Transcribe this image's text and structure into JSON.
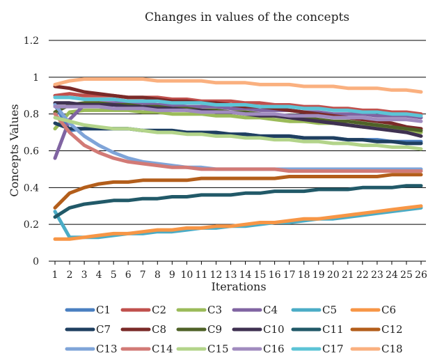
{
  "chart_data": {
    "type": "line",
    "title": "Changes in values of the concepts",
    "xlabel": "Iterations",
    "ylabel": "Concepts Values",
    "ylim": [
      0,
      1.2
    ],
    "yticks": [
      "0",
      "0.2",
      "0.4",
      "0.6",
      "0.8",
      "1",
      "1.2"
    ],
    "x": [
      1,
      2,
      3,
      4,
      5,
      6,
      7,
      8,
      9,
      10,
      11,
      12,
      13,
      14,
      15,
      16,
      17,
      18,
      19,
      20,
      21,
      22,
      23,
      24,
      25,
      26
    ],
    "grid": "horizontal",
    "legend_position": "bottom",
    "series": [
      {
        "name": "C1",
        "color": "#4a7fc1",
        "values": [
          0.85,
          0.71,
          0.72,
          0.72,
          0.72,
          0.72,
          0.71,
          0.71,
          0.71,
          0.7,
          0.7,
          0.69,
          0.69,
          0.69,
          0.68,
          0.68,
          0.68,
          0.67,
          0.67,
          0.67,
          0.66,
          0.66,
          0.66,
          0.65,
          0.65,
          0.65
        ]
      },
      {
        "name": "C2",
        "color": "#c0504d",
        "values": [
          0.9,
          0.91,
          0.9,
          0.9,
          0.9,
          0.89,
          0.89,
          0.89,
          0.88,
          0.88,
          0.87,
          0.87,
          0.87,
          0.86,
          0.86,
          0.85,
          0.85,
          0.84,
          0.84,
          0.83,
          0.83,
          0.82,
          0.82,
          0.81,
          0.81,
          0.8
        ]
      },
      {
        "name": "C3",
        "color": "#9bbb59",
        "values": [
          0.72,
          0.81,
          0.82,
          0.82,
          0.82,
          0.82,
          0.81,
          0.81,
          0.8,
          0.8,
          0.8,
          0.79,
          0.79,
          0.78,
          0.78,
          0.77,
          0.76,
          0.76,
          0.75,
          0.75,
          0.74,
          0.73,
          0.73,
          0.72,
          0.71,
          0.7
        ]
      },
      {
        "name": "C4",
        "color": "#8064a2",
        "values": [
          0.56,
          0.77,
          0.85,
          0.86,
          0.86,
          0.86,
          0.86,
          0.85,
          0.85,
          0.84,
          0.84,
          0.84,
          0.83,
          0.83,
          0.82,
          0.82,
          0.82,
          0.81,
          0.81,
          0.8,
          0.8,
          0.8,
          0.79,
          0.79,
          0.79,
          0.78
        ]
      },
      {
        "name": "C5",
        "color": "#4bacc6",
        "values": [
          0.27,
          0.13,
          0.13,
          0.13,
          0.14,
          0.15,
          0.15,
          0.16,
          0.16,
          0.17,
          0.18,
          0.18,
          0.19,
          0.19,
          0.2,
          0.21,
          0.21,
          0.22,
          0.23,
          0.23,
          0.24,
          0.25,
          0.26,
          0.27,
          0.28,
          0.29
        ]
      },
      {
        "name": "C6",
        "color": "#f79646",
        "values": [
          0.12,
          0.12,
          0.13,
          0.14,
          0.15,
          0.15,
          0.16,
          0.17,
          0.17,
          0.18,
          0.18,
          0.19,
          0.19,
          0.2,
          0.21,
          0.21,
          0.22,
          0.23,
          0.23,
          0.24,
          0.25,
          0.26,
          0.27,
          0.28,
          0.29,
          0.3
        ]
      },
      {
        "name": "C7",
        "color": "#1f3f60",
        "values": [
          0.75,
          0.72,
          0.72,
          0.72,
          0.72,
          0.72,
          0.71,
          0.71,
          0.71,
          0.7,
          0.7,
          0.7,
          0.69,
          0.69,
          0.68,
          0.68,
          0.68,
          0.67,
          0.67,
          0.67,
          0.66,
          0.66,
          0.65,
          0.65,
          0.64,
          0.64
        ]
      },
      {
        "name": "C8",
        "color": "#7a2a28",
        "values": [
          0.95,
          0.94,
          0.92,
          0.91,
          0.9,
          0.89,
          0.89,
          0.88,
          0.87,
          0.87,
          0.86,
          0.86,
          0.85,
          0.84,
          0.84,
          0.83,
          0.82,
          0.81,
          0.8,
          0.79,
          0.78,
          0.77,
          0.76,
          0.75,
          0.73,
          0.72
        ]
      },
      {
        "name": "C9",
        "color": "#4f6228",
        "values": [
          0.81,
          0.85,
          0.86,
          0.86,
          0.85,
          0.85,
          0.84,
          0.84,
          0.83,
          0.83,
          0.82,
          0.82,
          0.81,
          0.81,
          0.8,
          0.79,
          0.79,
          0.78,
          0.77,
          0.76,
          0.76,
          0.75,
          0.74,
          0.73,
          0.72,
          0.71
        ]
      },
      {
        "name": "C10",
        "color": "#3f3151",
        "values": [
          0.86,
          0.86,
          0.85,
          0.85,
          0.85,
          0.84,
          0.84,
          0.83,
          0.83,
          0.82,
          0.82,
          0.81,
          0.81,
          0.8,
          0.79,
          0.79,
          0.78,
          0.77,
          0.76,
          0.75,
          0.74,
          0.73,
          0.72,
          0.71,
          0.7,
          0.68
        ]
      },
      {
        "name": "C11",
        "color": "#215968",
        "values": [
          0.24,
          0.29,
          0.31,
          0.32,
          0.33,
          0.33,
          0.34,
          0.34,
          0.35,
          0.35,
          0.36,
          0.36,
          0.36,
          0.37,
          0.37,
          0.38,
          0.38,
          0.38,
          0.39,
          0.39,
          0.39,
          0.4,
          0.4,
          0.4,
          0.41,
          0.41
        ]
      },
      {
        "name": "C12",
        "color": "#b35e1b",
        "values": [
          0.29,
          0.37,
          0.4,
          0.42,
          0.43,
          0.43,
          0.44,
          0.44,
          0.44,
          0.44,
          0.45,
          0.45,
          0.45,
          0.45,
          0.45,
          0.45,
          0.46,
          0.46,
          0.46,
          0.46,
          0.46,
          0.46,
          0.46,
          0.47,
          0.47,
          0.47
        ]
      },
      {
        "name": "C13",
        "color": "#7fa4d8",
        "values": [
          0.85,
          0.75,
          0.68,
          0.63,
          0.59,
          0.56,
          0.54,
          0.53,
          0.52,
          0.51,
          0.51,
          0.5,
          0.5,
          0.5,
          0.5,
          0.5,
          0.5,
          0.5,
          0.5,
          0.5,
          0.5,
          0.5,
          0.5,
          0.5,
          0.5,
          0.5
        ]
      },
      {
        "name": "C14",
        "color": "#d27a76",
        "values": [
          0.8,
          0.7,
          0.63,
          0.59,
          0.56,
          0.54,
          0.53,
          0.52,
          0.51,
          0.51,
          0.5,
          0.5,
          0.5,
          0.5,
          0.5,
          0.5,
          0.49,
          0.49,
          0.49,
          0.49,
          0.49,
          0.49,
          0.49,
          0.49,
          0.49,
          0.49
        ]
      },
      {
        "name": "C15",
        "color": "#b3d48a",
        "values": [
          0.78,
          0.76,
          0.74,
          0.73,
          0.72,
          0.72,
          0.71,
          0.7,
          0.7,
          0.69,
          0.69,
          0.68,
          0.68,
          0.67,
          0.67,
          0.66,
          0.66,
          0.65,
          0.65,
          0.64,
          0.64,
          0.63,
          0.63,
          0.62,
          0.62,
          0.61
        ]
      },
      {
        "name": "C16",
        "color": "#a08bbf",
        "values": [
          0.84,
          0.84,
          0.84,
          0.84,
          0.83,
          0.83,
          0.83,
          0.82,
          0.82,
          0.82,
          0.81,
          0.81,
          0.81,
          0.8,
          0.8,
          0.8,
          0.79,
          0.79,
          0.79,
          0.78,
          0.78,
          0.78,
          0.77,
          0.77,
          0.77,
          0.76
        ]
      },
      {
        "name": "C17",
        "color": "#5cc4d6",
        "values": [
          0.89,
          0.89,
          0.88,
          0.88,
          0.88,
          0.87,
          0.87,
          0.87,
          0.86,
          0.86,
          0.86,
          0.85,
          0.85,
          0.85,
          0.84,
          0.84,
          0.84,
          0.83,
          0.83,
          0.82,
          0.82,
          0.81,
          0.81,
          0.8,
          0.8,
          0.79
        ]
      },
      {
        "name": "C18",
        "color": "#fab07f",
        "values": [
          0.96,
          0.98,
          0.99,
          0.99,
          0.99,
          0.99,
          0.99,
          0.98,
          0.98,
          0.98,
          0.98,
          0.97,
          0.97,
          0.97,
          0.96,
          0.96,
          0.96,
          0.95,
          0.95,
          0.95,
          0.94,
          0.94,
          0.94,
          0.93,
          0.93,
          0.92
        ]
      }
    ]
  }
}
